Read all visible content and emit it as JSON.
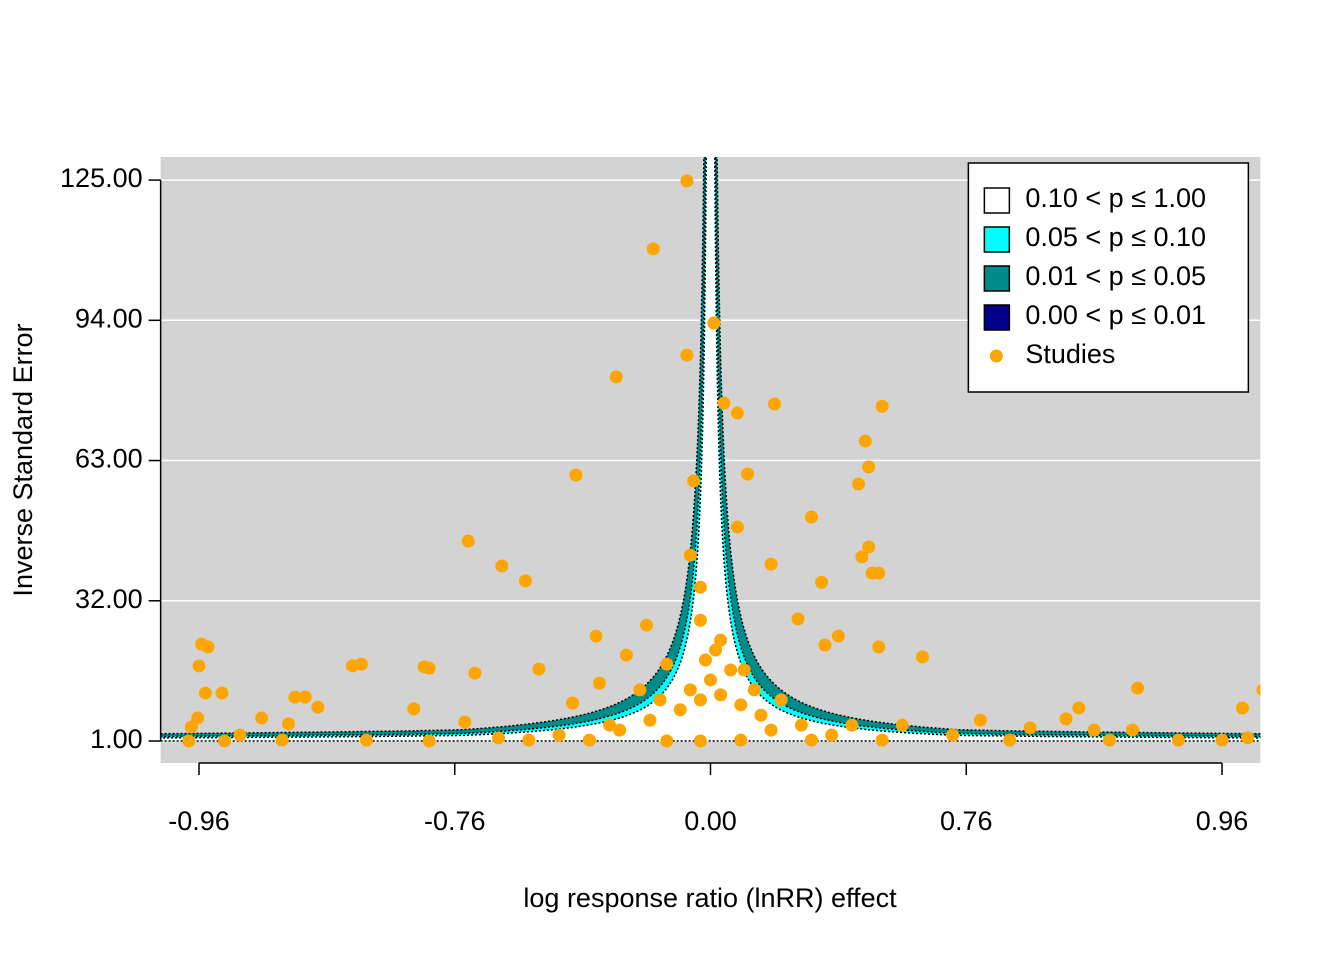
{
  "chart_data": {
    "type": "scatter",
    "x_label": "log response ratio (lnRR) effect",
    "y_label": "Inverse Standard Error",
    "xlim": [
      -0.99,
      0.99
    ],
    "ylim": [
      -3.86,
      130.1
    ],
    "xticks": [
      -0.96,
      -0.76,
      {
        "value": 0,
        "label": "0.00"
      },
      0.76,
      0.96
    ],
    "yticks": [
      {
        "value": 1,
        "label": "1.00"
      },
      {
        "value": 32,
        "label": "32.00"
      },
      {
        "value": 63,
        "label": "63.00"
      },
      {
        "value": 94,
        "label": "94.00"
      },
      {
        "value": 125,
        "label": "125.00"
      }
    ],
    "grid": true,
    "background": "#D3D3D3",
    "legend_position": "top-right",
    "contours": [
      {
        "label": "0.10 < p ≤ 1.00",
        "color": "#FFFFFF"
      },
      {
        "label": "0.05 < p ≤ 0.10",
        "color": "#00FFFF"
      },
      {
        "label": "0.01 < p ≤ 0.05",
        "color": "#008B8B"
      },
      {
        "label": "0.00 < p ≤ 0.01",
        "color": "#00008B"
      }
    ],
    "series": [
      {
        "name": "Studies",
        "color": "#FFA500",
        "x": [
          -0.07,
          -0.17,
          0.01,
          -0.07,
          -0.28,
          0.04,
          0.08,
          0.19,
          0.51,
          0.46,
          0.47,
          0.44,
          0.11,
          -0.05,
          -0.4,
          0.3,
          0.08,
          -0.72,
          0.47,
          0.45,
          0.48,
          0.5,
          -0.62,
          -0.55,
          0.18,
          -0.06,
          -0.03,
          0.33,
          0.26,
          -0.34,
          -0.19,
          0.38,
          0.34,
          0.5,
          0.63,
          -0.958,
          -0.953,
          -0.96,
          -0.84,
          -0.833,
          -0.784,
          -0.78,
          -0.7,
          -0.51,
          -0.33,
          -0.25,
          -0.13,
          -0.955,
          -0.942,
          -0.885,
          -0.877,
          -0.867,
          -0.911,
          -0.961,
          -0.966,
          -0.89,
          -0.792,
          -0.41,
          0.894,
          0.848,
          0.976,
          0.992,
          0.838,
          0.96,
          -0.968,
          -0.94,
          -0.78,
          -0.63,
          -0.45,
          -0.27,
          -0.18,
          -0.09,
          -0.03,
          0.03,
          0.09,
          0.15,
          0.21,
          0.27,
          0.36,
          0.51,
          0.72,
          0.794,
          0.872,
          0.926,
          0,
          -0.06,
          0.06,
          -0.015,
          0.015,
          -0.03,
          0.03,
          0.1,
          0.13,
          -0.21,
          -0.15,
          -0.3,
          -0.03,
          0.09,
          0.18,
          0.3,
          0.42,
          0.57,
          0.771,
          0.81,
          0.86,
          0.89,
          0.98,
          -0.829,
          -0.73,
          -0.54,
          -0.36,
          -0.13,
          -0.895,
          -0.928
        ],
        "values": [
          124.8,
          109.8,
          93.4,
          86.3,
          81.5,
          75.7,
          73.5,
          75.5,
          75,
          67.3,
          61.6,
          57.8,
          60,
          58.5,
          59.8,
          50.5,
          48.3,
          45.2,
          43.9,
          41.7,
          38.1,
          38.1,
          39.7,
          36.4,
          40.1,
          42.1,
          35,
          36.1,
          28,
          24.2,
          26.6,
          24.2,
          22.2,
          21.8,
          19.6,
          22.4,
          21.8,
          17.6,
          17.6,
          18,
          17.4,
          17.1,
          16,
          16.9,
          13.8,
          20,
          18,
          11.6,
          11.6,
          10.7,
          10.7,
          8.5,
          6.1,
          6.1,
          4.1,
          4.8,
          8.1,
          9.4,
          12.7,
          8.3,
          8.3,
          12.3,
          5.9,
          1.2,
          1,
          1,
          1,
          1.7,
          2.3,
          3.4,
          5.6,
          7.9,
          10.1,
          11.2,
          9,
          6.7,
          10.1,
          4.5,
          2.3,
          1.2,
          2.3,
          1.2,
          1.2,
          1.2,
          14.5,
          12.3,
          16.7,
          18.9,
          21.1,
          27.7,
          23.3,
          16.7,
          12.3,
          12.3,
          10.1,
          4.5,
          1,
          1.2,
          3.4,
          1.2,
          4.5,
          4.5,
          5.6,
          3.9,
          3.4,
          3.4,
          1.7,
          1.2,
          5.2,
          1.2,
          1.2,
          1,
          1.2,
          2.3
        ]
      }
    ]
  }
}
